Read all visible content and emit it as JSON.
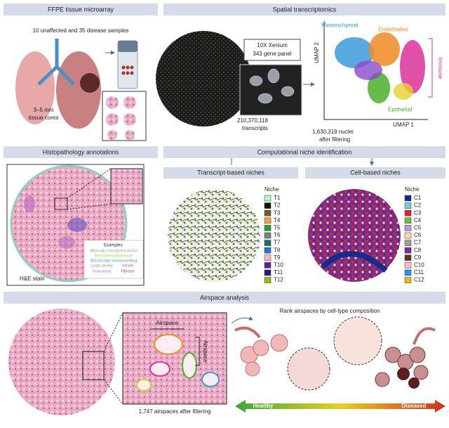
{
  "panels": {
    "tma": {
      "title": "FFPE tissue microarray",
      "subtitle": "10 unaffected and 35 disease samples",
      "core_size": [
        "3–5 mm",
        "tissue cores"
      ]
    },
    "spatial": {
      "title": "Spatial transcriptomics",
      "panel_box": [
        "10X Xenium",
        "343 gene panel"
      ],
      "umap": {
        "y_label": "UMAP 2",
        "x_label": "UMAP 1",
        "clusters": [
          {
            "label": "Mesenchymal",
            "color": "#3a9ad9"
          },
          {
            "label": "Endothelial",
            "color": "#f08a24"
          },
          {
            "label": "Immune",
            "color": "#d9339a"
          },
          {
            "label": "Epithelial",
            "color": "#4caf2a"
          }
        ]
      },
      "transcripts": [
        "210,370,118",
        "transcripts"
      ],
      "nuclei": [
        "1,630,319 nuclei",
        "after filtering"
      ]
    },
    "histo": {
      "title": "Histopathology annotations",
      "stain": "H&E stain",
      "examples_title": "Examples:",
      "examples": [
        {
          "label": "Minimally remodeled alveoli",
          "color": "#5fb8a0"
        },
        {
          "label": "Remodeled epithelium",
          "color": "#b5c830"
        },
        {
          "label": "Microscopic honeycombing",
          "color": "#3a9ad0"
        },
        {
          "label": "Large airway",
          "color": "#909090"
        },
        {
          "label": "Venule",
          "color": "#e0507a"
        },
        {
          "label": "Granuloma",
          "color": "#c070c0"
        },
        {
          "label": "Fibrosis",
          "color": "#6050c0"
        }
      ]
    },
    "niche": {
      "title": "Computational niche identification",
      "transcript": {
        "title": "Transcript-based niches",
        "legend_title": "Niche",
        "legend": [
          {
            "label": "T1",
            "color": "#b8f5c4"
          },
          {
            "label": "T2",
            "color": "#111111"
          },
          {
            "label": "T3",
            "color": "#7a5a2a"
          },
          {
            "label": "T4",
            "color": "#f5a050"
          },
          {
            "label": "T5",
            "color": "#2ca02c"
          },
          {
            "label": "T6",
            "color": "#7f7f7f"
          },
          {
            "label": "T7",
            "color": "#1b6e6e"
          },
          {
            "label": "T8",
            "color": "#1f77d4"
          },
          {
            "label": "T9",
            "color": "#f7b6d2"
          },
          {
            "label": "T10",
            "color": "#5b2a86"
          },
          {
            "label": "T11",
            "color": "#1a237e"
          },
          {
            "label": "T12",
            "color": "#a3b800"
          }
        ]
      },
      "cell": {
        "title": "Cell-based niches",
        "legend_title": "Niche",
        "legend": [
          {
            "label": "C1",
            "color": "#1a2a8a"
          },
          {
            "label": "C2",
            "color": "#7ec8e3"
          },
          {
            "label": "C3",
            "color": "#d62728"
          },
          {
            "label": "C4",
            "color": "#6abf40"
          },
          {
            "label": "C5",
            "color": "#b39ddb"
          },
          {
            "label": "C6",
            "color": "#ffd8a8"
          },
          {
            "label": "C7",
            "color": "#9e9e9e"
          },
          {
            "label": "C8",
            "color": "#7b2d8b"
          },
          {
            "label": "C9",
            "color": "#5a3a1a"
          },
          {
            "label": "C10",
            "color": "#f8bbd0"
          },
          {
            "label": "C11",
            "color": "#2196f3"
          },
          {
            "label": "C12",
            "color": "#e0c020"
          }
        ]
      }
    },
    "airspace": {
      "title": "Airspace analysis",
      "zoom_labels": [
        "Airspace",
        "Airspace"
      ],
      "count": "1,747 airspaces after filtering",
      "rank": "Rank airspaces by cell-type composition",
      "scale": [
        "Healthy",
        "Diseased"
      ]
    }
  }
}
